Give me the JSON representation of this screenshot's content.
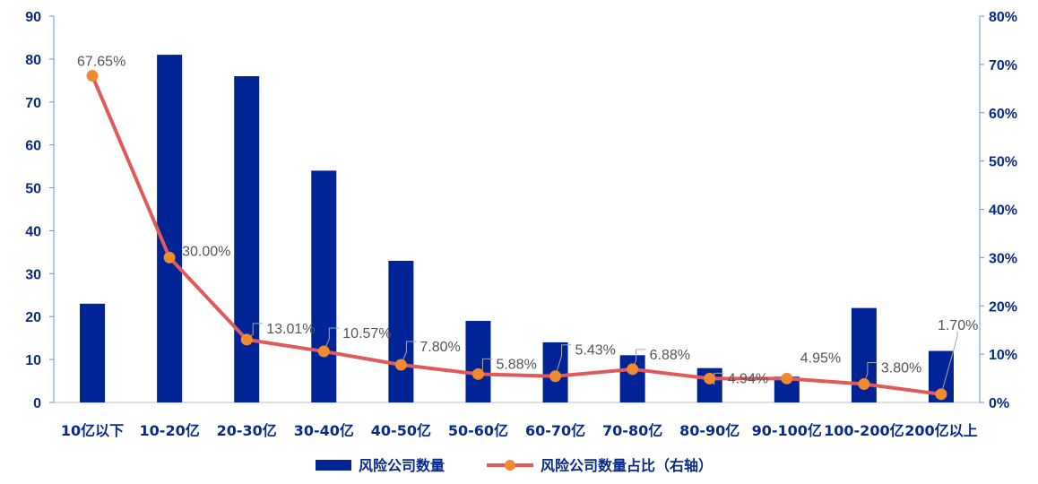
{
  "chart_data": {
    "type": "bar+line",
    "categories": [
      "10亿以下",
      "10-20亿",
      "20-30亿",
      "30-40亿",
      "40-50亿",
      "50-60亿",
      "60-70亿",
      "70-80亿",
      "80-90亿",
      "90-100亿",
      "100-200亿",
      "200亿以上"
    ],
    "series": [
      {
        "name": "风险公司数量",
        "type": "bar",
        "axis": "left",
        "color": "#002395",
        "values": [
          23,
          81,
          76,
          54,
          33,
          19,
          14,
          11,
          8,
          6,
          22,
          12
        ]
      },
      {
        "name": "风险公司数量占比（右轴）",
        "type": "line",
        "axis": "right",
        "line_color": "#e05a5a",
        "marker_color": "#f08a30",
        "values": [
          67.65,
          30.0,
          13.01,
          10.57,
          7.8,
          5.88,
          5.43,
          6.88,
          4.94,
          4.95,
          3.8,
          1.7
        ],
        "labels": [
          "67.65%",
          "30.00%",
          "13.01%",
          "10.57%",
          "7.80%",
          "5.88%",
          "5.43%",
          "6.88%",
          "4.94%",
          "4.95%",
          "3.80%",
          "1.70%"
        ]
      }
    ],
    "y_left": {
      "min": 0,
      "max": 90,
      "ticks": [
        "0",
        "10",
        "20",
        "30",
        "40",
        "50",
        "60",
        "70",
        "80",
        "90"
      ]
    },
    "y_right": {
      "min": 0,
      "max": 80,
      "ticks": [
        "0%",
        "10%",
        "20%",
        "30%",
        "40%",
        "50%",
        "60%",
        "70%",
        "80%"
      ]
    },
    "legend": {
      "placement": "bottom-center",
      "items": [
        "风险公司数量",
        "风险公司数量占比（右轴）"
      ]
    },
    "grid": false
  }
}
